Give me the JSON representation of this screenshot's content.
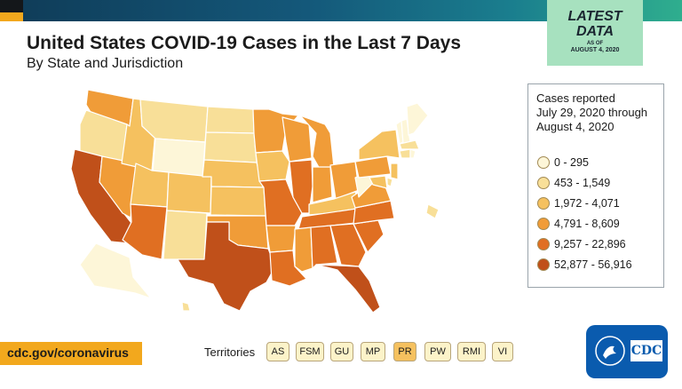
{
  "header": {
    "title": "United States COVID-19 Cases in the Last 7 Days",
    "subtitle": "By State and Jurisdiction"
  },
  "badge": {
    "line1": "LATEST",
    "line2": "DATA",
    "line3": "AS OF",
    "line4": "AUGUST 4, 2020"
  },
  "legend": {
    "title_lines": [
      "Cases reported",
      "July 29, 2020 through",
      "August 4, 2020"
    ],
    "items": [
      {
        "label": "0 - 295",
        "color": "#fdf6d8"
      },
      {
        "label": "453 - 1,549",
        "color": "#f8df98"
      },
      {
        "label": "1,972 - 4,071",
        "color": "#f5c15f"
      },
      {
        "label": "4,791 - 8,609",
        "color": "#f09c38"
      },
      {
        "label": "9,257 - 22,896",
        "color": "#e06f22"
      },
      {
        "label": "52,877 - 56,916",
        "color": "#c0501a"
      }
    ]
  },
  "footer": {
    "url": "cdc.gov/coronavirus",
    "territories_label": "Territories",
    "territories": [
      {
        "code": "AS",
        "color": "#fcf3c9"
      },
      {
        "code": "FSM",
        "color": "#fcf3c9"
      },
      {
        "code": "GU",
        "color": "#fcf3c9"
      },
      {
        "code": "MP",
        "color": "#fcf3c9"
      },
      {
        "code": "PR",
        "color": "#f5c15f"
      },
      {
        "code": "PW",
        "color": "#fcf3c9"
      },
      {
        "code": "RMI",
        "color": "#fcf3c9"
      },
      {
        "code": "VI",
        "color": "#fcf3c9"
      }
    ]
  },
  "logo": {
    "text": "CDC"
  },
  "colors": {
    "c0": "#fdf6d8",
    "c1": "#f8df98",
    "c2": "#f5c15f",
    "c3": "#f09c38",
    "c4": "#e06f22",
    "c5": "#c0501a",
    "border": "#ffffff"
  }
}
